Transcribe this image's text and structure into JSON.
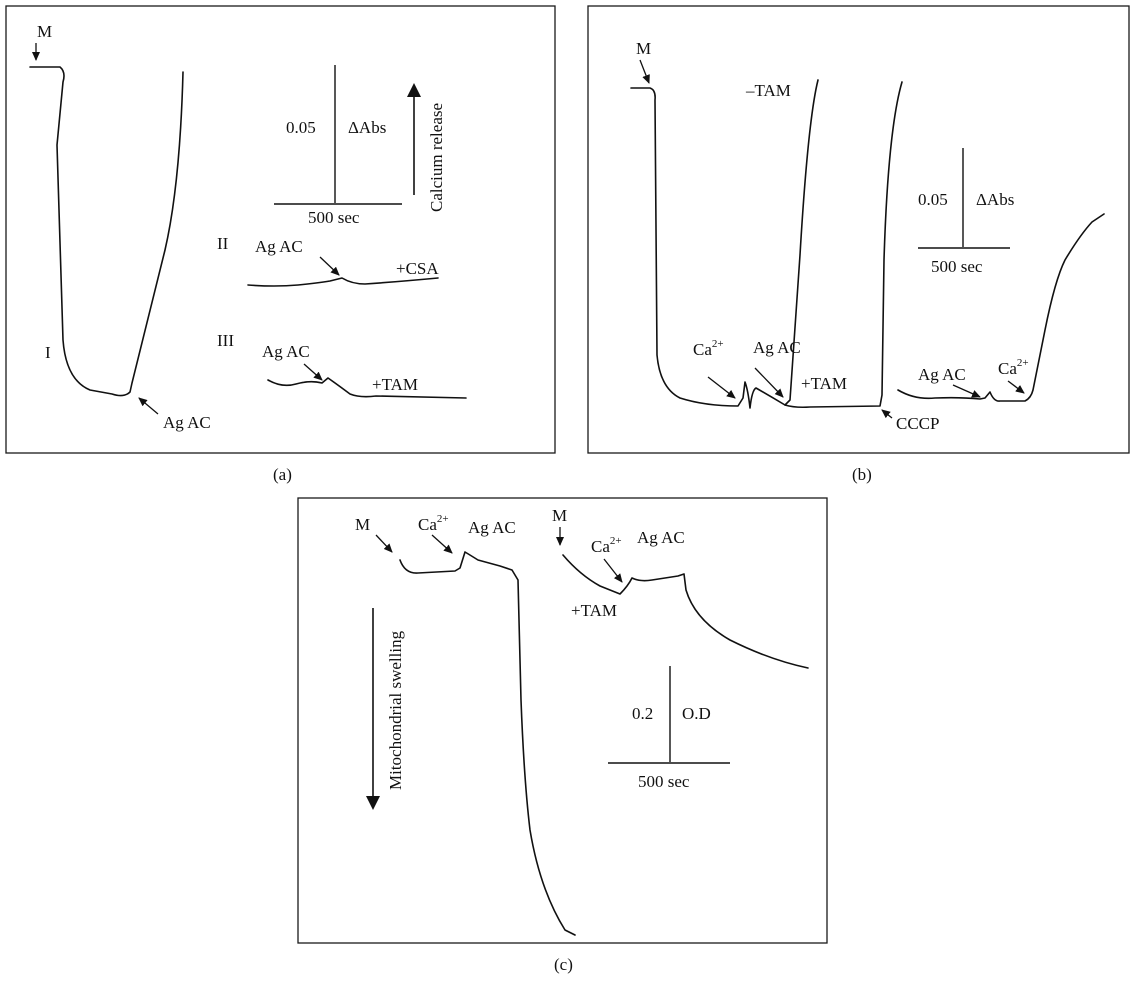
{
  "panel_a": {
    "caption": "(a)",
    "m_label": "M",
    "trace_I": {
      "label": "I",
      "ag_label": "Ag AC"
    },
    "trace_II": {
      "label": "II",
      "ag_label": "Ag AC",
      "condition": "+CSA"
    },
    "trace_III": {
      "label": "III",
      "ag_label": "Ag AC",
      "condition": "+TAM"
    },
    "scale": {
      "value": "0.05",
      "unit": "ΔAbs",
      "time": "500 sec"
    },
    "direction_label": "Calcium release"
  },
  "panel_b": {
    "caption": "(b)",
    "m_label": "M",
    "ca_base": "Ca",
    "ca_sup": "2+",
    "ag_label": "Ag AC",
    "minus_tam": "–TAM",
    "plus_tam": "+TAM",
    "cccp": "CCCP",
    "scale": {
      "value": "0.05",
      "unit": "ΔAbs",
      "time": "500 sec"
    }
  },
  "panel_c": {
    "caption": "(c)",
    "m_label": "M",
    "ca_base": "Ca",
    "ca_sup": "2+",
    "ag_label": "Ag AC",
    "plus_tam": "+TAM",
    "direction_label": "Mitochondrial swelling",
    "scale": {
      "value": "0.2",
      "unit": "O.D",
      "time": "500 sec"
    }
  },
  "colors": {
    "ink": "#111111",
    "background": "#ffffff"
  },
  "icons": [
    "arrow-icon"
  ]
}
